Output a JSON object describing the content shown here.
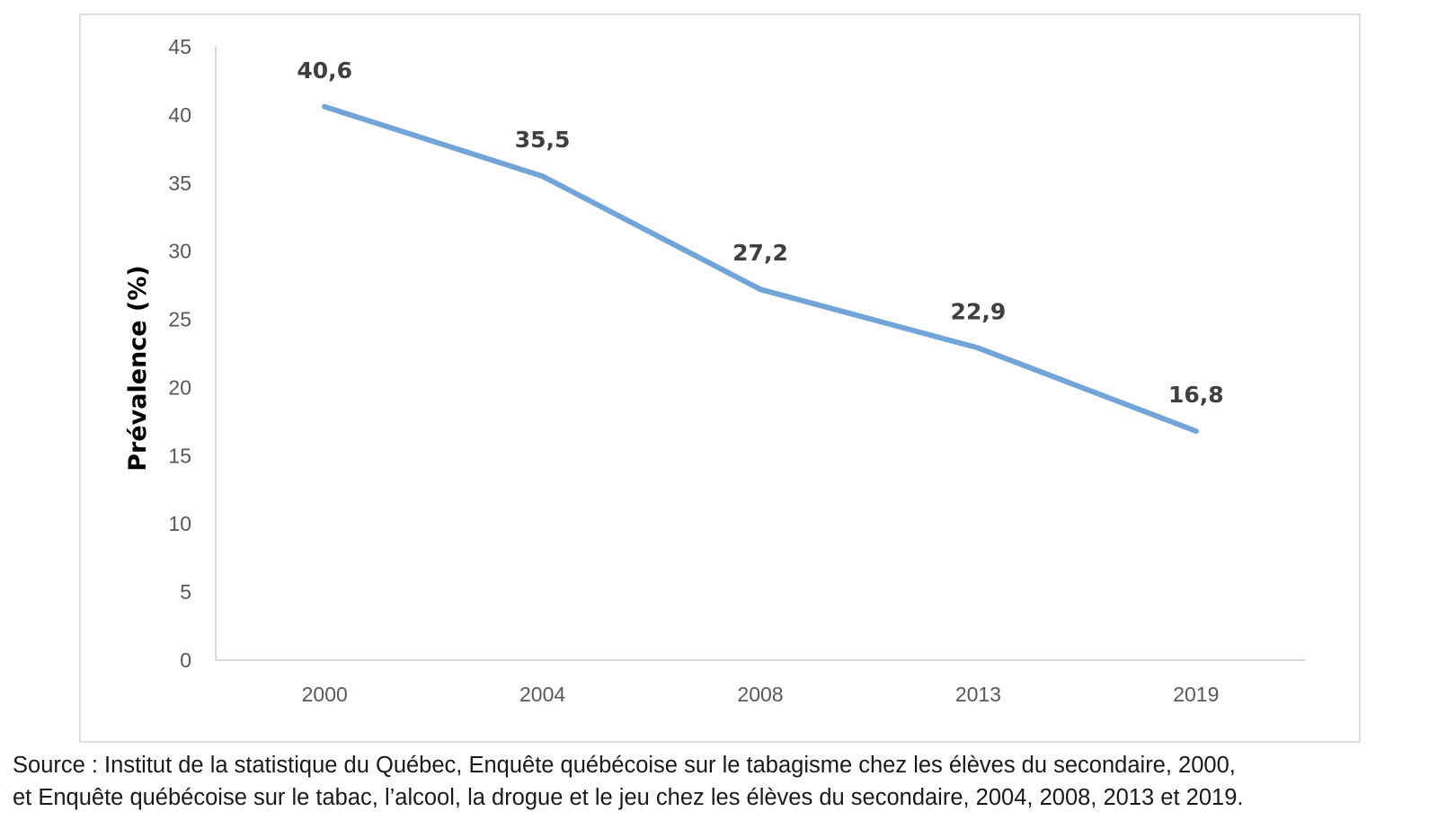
{
  "chart_data": {
    "type": "line",
    "categories": [
      "2000",
      "2004",
      "2008",
      "2013",
      "2019"
    ],
    "series": [
      {
        "values": [
          40.6,
          35.5,
          27.2,
          22.9,
          16.8
        ],
        "data_labels": [
          "40,6",
          "35,5",
          "27,2",
          "22,9",
          "16,8"
        ]
      }
    ],
    "ylabel": "Prévalence  (%)",
    "ylim": [
      0,
      45
    ],
    "yticks": [
      0,
      5,
      10,
      15,
      20,
      25,
      30,
      35,
      40,
      45
    ],
    "grid": false,
    "line_color": "#73a4d8"
  },
  "source": {
    "line1": "Source : Institut de la statistique du Québec, Enquête québécoise sur le tabagisme chez les élèves du secondaire, 2000,",
    "line2": "et Enquête québécoise sur le tabac, l’alcool, la drogue et le jeu chez les élèves du secondaire, 2004, 2008, 2013 et 2019."
  }
}
